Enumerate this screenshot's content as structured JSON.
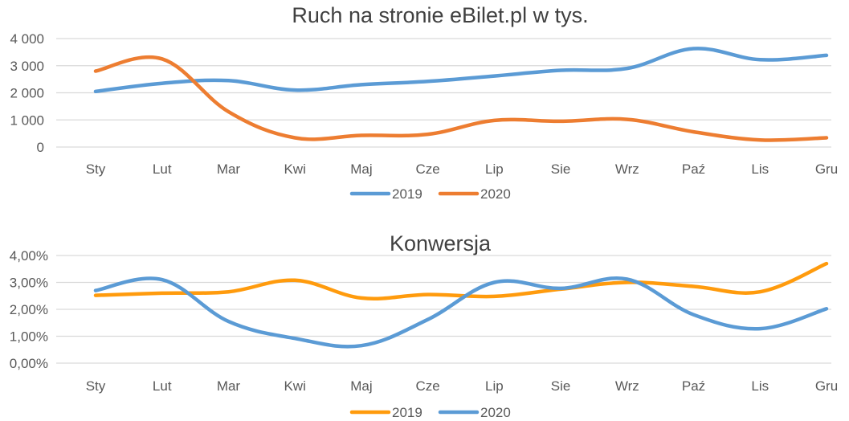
{
  "chart_data": [
    {
      "type": "line",
      "title": "Ruch na stronie eBilet.pl w tys.",
      "categories": [
        "Sty",
        "Lut",
        "Mar",
        "Kwi",
        "Maj",
        "Cze",
        "Lip",
        "Sie",
        "Wrz",
        "Paź",
        "Lis",
        "Gru"
      ],
      "ylim": [
        0,
        4000
      ],
      "yticks": [
        "0",
        "1 000",
        "2 000",
        "3 000",
        "4 000"
      ],
      "grid": true,
      "legend": "bottom",
      "smooth": true,
      "series": [
        {
          "name": "2019",
          "color": "#5B9BD5",
          "values": [
            2050,
            2350,
            2450,
            2100,
            2300,
            2420,
            2620,
            2830,
            2900,
            3630,
            3220,
            3380
          ]
        },
        {
          "name": "2020",
          "color": "#ED7D31",
          "values": [
            2800,
            3250,
            1300,
            340,
            430,
            470,
            980,
            950,
            1020,
            560,
            260,
            340
          ]
        }
      ]
    },
    {
      "type": "line",
      "title": "Konwersja",
      "categories": [
        "Sty",
        "Lut",
        "Mar",
        "Kwi",
        "Maj",
        "Cze",
        "Lip",
        "Sie",
        "Wrz",
        "Paź",
        "Lis",
        "Gru"
      ],
      "ylim": [
        0,
        4
      ],
      "yticks": [
        "0,00%",
        "1,00%",
        "2,00%",
        "3,00%",
        "4,00%"
      ],
      "grid": true,
      "legend": "bottom",
      "smooth": true,
      "series": [
        {
          "name": "2019",
          "color": "#FF9B0D",
          "values": [
            2.52,
            2.6,
            2.65,
            3.08,
            2.42,
            2.55,
            2.48,
            2.75,
            3.0,
            2.85,
            2.65,
            3.7
          ]
        },
        {
          "name": "2020",
          "color": "#5B9BD5",
          "values": [
            2.7,
            3.1,
            1.55,
            0.92,
            0.65,
            1.62,
            3.0,
            2.78,
            3.12,
            1.8,
            1.28,
            2.02
          ]
        }
      ]
    }
  ]
}
